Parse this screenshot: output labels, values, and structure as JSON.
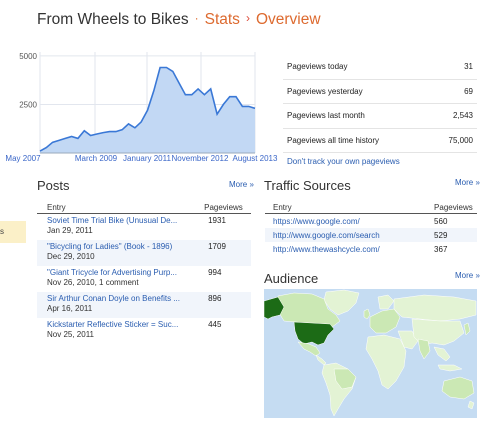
{
  "breadcrumb": {
    "blog": "From Wheels to Bikes",
    "stats": "Stats",
    "current": "Overview"
  },
  "left_cut": {
    "text": "s"
  },
  "stats": {
    "rows": [
      {
        "label": "Pageviews today",
        "value": "31"
      },
      {
        "label": "Pageviews yesterday",
        "value": "69"
      },
      {
        "label": "Pageviews last month",
        "value": "2,543"
      },
      {
        "label": "Pageviews all time history",
        "value": "75,000"
      }
    ],
    "dont_track": "Don't track your own pageviews"
  },
  "chart_data": {
    "type": "area",
    "y_ticks": [
      "5000",
      "2500"
    ],
    "x_ticks": [
      "May 2007",
      "March 2009",
      "January 2011",
      "November 2012",
      "August 2013"
    ],
    "ylim": [
      0,
      5200
    ],
    "values": [
      100,
      280,
      550,
      650,
      750,
      850,
      750,
      1150,
      900,
      980,
      1050,
      1100,
      1100,
      1200,
      1500,
      1300,
      1600,
      2200,
      3200,
      4400,
      4400,
      4200,
      3600,
      3000,
      3000,
      3300,
      3000,
      3300,
      2000,
      2500,
      2900,
      2900,
      2400,
      2400,
      2300
    ],
    "grid": true,
    "colors": {
      "fill": "#c2d8f4",
      "line": "#3a78d6",
      "grid": "#e2e6ee"
    }
  },
  "posts": {
    "title": "Posts",
    "more": "More »",
    "columns": {
      "entry": "Entry",
      "pageviews": "Pageviews"
    },
    "rows": [
      {
        "title": "Soviet Time Trial Bike (Unusual De...",
        "sub": "Jan 29, 2011",
        "pageviews": "1931"
      },
      {
        "title": "\"Bicycling for Ladies\" (Book - 1896)",
        "sub": "Dec 29, 2010",
        "pageviews": "1709"
      },
      {
        "title": "\"Giant Tricycle for Advertising Purp...",
        "sub": "Nov 26, 2010, 1 comment",
        "pageviews": "994"
      },
      {
        "title": "Sir Arthur Conan Doyle on Benefits ...",
        "sub": "Apr 16, 2011",
        "pageviews": "896"
      },
      {
        "title": "Kickstarter Reflective Sticker = Suc...",
        "sub": "Nov 25, 2011",
        "pageviews": "445"
      }
    ]
  },
  "traffic": {
    "title": "Traffic Sources",
    "more": "More »",
    "columns": {
      "entry": "Entry",
      "pageviews": "Pageviews"
    },
    "rows": [
      {
        "source": "https://www.google.com/",
        "pageviews": "560"
      },
      {
        "source": "http://www.google.com/search",
        "pageviews": "529"
      },
      {
        "source": "http://www.thewashcycle.com/",
        "pageviews": "367"
      }
    ]
  },
  "audience": {
    "title": "Audience",
    "more": "More »",
    "colors": {
      "ocean": "#c5dcf2",
      "land": "#e3f3d4",
      "land_light": "#cbe8b4",
      "highlight": "#1c6b16",
      "border": "#ffffff"
    }
  }
}
